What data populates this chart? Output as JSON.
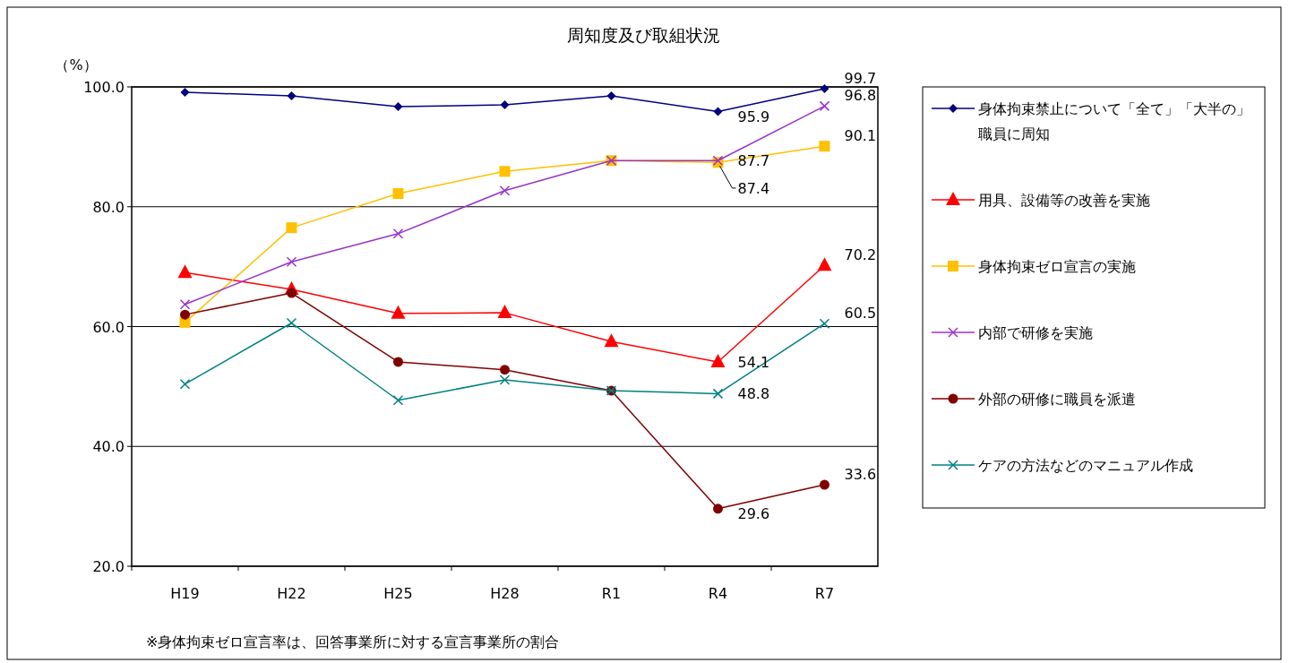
{
  "chart_data": {
    "type": "line",
    "title": "周知度及び取組状況",
    "ylabel": "（%）",
    "categories": [
      "H19",
      "H22",
      "H25",
      "H28",
      "R1",
      "R4",
      "R7"
    ],
    "ylim": [
      20,
      100
    ],
    "yticks": [
      {
        "value": 20,
        "label": "20.0"
      },
      {
        "value": 40,
        "label": "40.0"
      },
      {
        "value": 60,
        "label": "60.0"
      },
      {
        "value": 80,
        "label": "80.0"
      },
      {
        "value": 100,
        "label": "100.0"
      }
    ],
    "grid": "y",
    "legend": "right",
    "series": [
      {
        "name": "身体拘束禁止について「全て」「大半の」職員に周知",
        "color": "#000080",
        "marker": "diamond",
        "values": [
          99.1,
          98.5,
          96.7,
          97.0,
          98.5,
          95.9,
          99.7
        ],
        "value_labels": [
          null,
          null,
          null,
          null,
          null,
          "95.9",
          "99.7"
        ]
      },
      {
        "name": "用具、設備等の改善を実施",
        "color": "#ff0000",
        "marker": "triangle",
        "values": [
          69.0,
          66.2,
          62.2,
          62.3,
          57.5,
          54.1,
          70.2
        ],
        "value_labels": [
          null,
          null,
          null,
          null,
          null,
          "54.1",
          "70.2"
        ]
      },
      {
        "name": "身体拘束ゼロ宣言の実施",
        "color": "#ffc000",
        "marker": "square",
        "values": [
          60.7,
          76.5,
          82.2,
          85.9,
          87.7,
          87.4,
          90.1
        ],
        "value_labels": [
          null,
          null,
          null,
          null,
          null,
          "87.4",
          "90.1"
        ]
      },
      {
        "name": "内部で研修を実施",
        "color": "#9933cc",
        "marker": "cross",
        "values": [
          63.7,
          70.8,
          75.5,
          82.7,
          87.7,
          87.7,
          96.8
        ],
        "value_labels": [
          null,
          null,
          null,
          null,
          null,
          "87.7",
          "96.8"
        ]
      },
      {
        "name": "外部の研修に職員を派遣",
        "color": "#800000",
        "marker": "circle",
        "values": [
          62.0,
          65.6,
          54.1,
          52.8,
          49.3,
          29.6,
          33.6
        ],
        "value_labels": [
          null,
          null,
          null,
          null,
          null,
          "29.6",
          "33.6"
        ]
      },
      {
        "name": "ケアの方法などのマニュアル作成",
        "color": "#008080",
        "marker": "cross",
        "values": [
          50.4,
          60.6,
          47.7,
          51.1,
          49.3,
          48.8,
          60.5
        ],
        "value_labels": [
          null,
          null,
          null,
          null,
          null,
          "48.8",
          "60.5"
        ]
      }
    ],
    "annotations": [
      "※身体拘束ゼロ宣言率は、回答事業所に対する宣言事業所の割合"
    ]
  }
}
